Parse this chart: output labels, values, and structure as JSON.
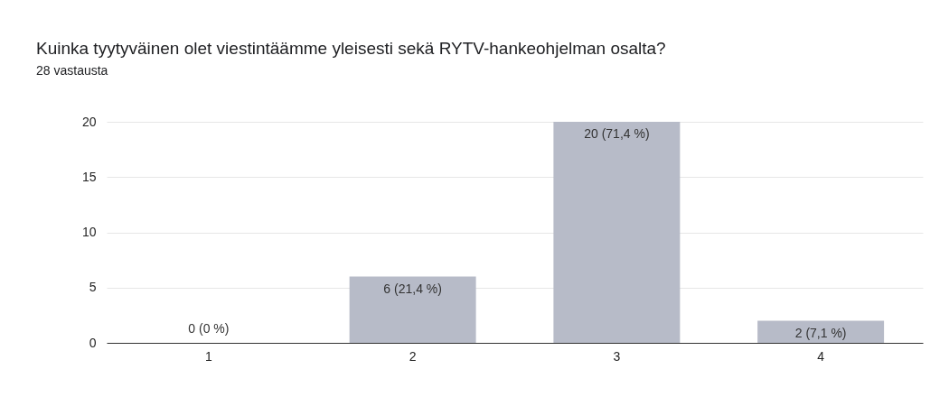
{
  "chart_data": {
    "type": "bar",
    "title": "Kuinka tyytyväinen olet viestintäämme yleisesti sekä RYTV-hankeohjelman osalta?",
    "subtitle": "28 vastausta",
    "categories": [
      "1",
      "2",
      "3",
      "4"
    ],
    "values": [
      0,
      6,
      20,
      2
    ],
    "value_labels": [
      "0 (0 %)",
      "6 (21,4 %)",
      "20 (71,4 %)",
      "2 (7,1 %)"
    ],
    "color": "#b7bbc8",
    "ylim": [
      0,
      20
    ],
    "yticks": [
      0,
      5,
      10,
      15,
      20
    ],
    "grid": "y"
  }
}
